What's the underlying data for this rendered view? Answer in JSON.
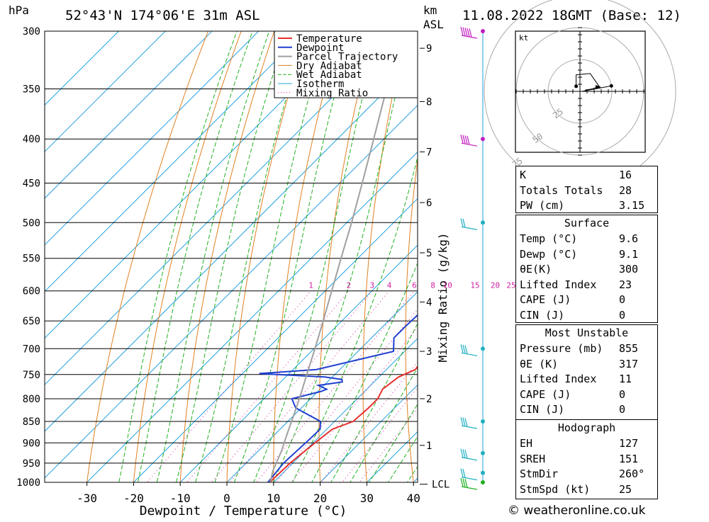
{
  "header": {
    "hpa_unit": "hPa",
    "location": "52°43'N 174°06'E 31m ASL",
    "km_unit": "km",
    "asl_unit": "ASL",
    "datetime": "11.08.2022 18GMT (Base: 12)"
  },
  "credit": "© weatheronline.co.uk",
  "colors": {
    "temperature": "#e83030",
    "dewpoint": "#2040d0",
    "parcel": "#a0a0a0",
    "dry_adiabat": "#e08020",
    "wet_adiabat": "#20b020",
    "isotherm": "#20a0e0",
    "mixing_ratio": "#d020a0"
  },
  "chart_data": {
    "type": "line",
    "title": "",
    "xlabel": "Dewpoint / Temperature (°C)",
    "ylabel": "hPa",
    "y2label": "Mixing Ratio (g/kg)",
    "xlim": [
      -40,
      40
    ],
    "ylim": [
      1000,
      300
    ],
    "y_scale": "log",
    "skew": true,
    "grid": true,
    "legend_position": "top-center",
    "pressure_ticks": [
      300,
      350,
      400,
      450,
      500,
      550,
      600,
      650,
      700,
      750,
      800,
      850,
      900,
      950,
      1000
    ],
    "temp_ticks": [
      -30,
      -20,
      -10,
      0,
      10,
      20,
      30,
      40
    ],
    "km_ticks": [
      {
        "label": "1",
        "p": 906
      },
      {
        "label": "2",
        "p": 800
      },
      {
        "label": "3",
        "p": 705
      },
      {
        "label": "4",
        "p": 618
      },
      {
        "label": "5",
        "p": 542
      },
      {
        "label": "6",
        "p": 474
      },
      {
        "label": "7",
        "p": 414
      },
      {
        "label": "8",
        "p": 362
      },
      {
        "label": "9",
        "p": 314
      }
    ],
    "lcl_label": "LCL",
    "lcl_p": 1005,
    "mixing_ratio_labels": [
      "1",
      "2",
      "3",
      "4",
      "6",
      "8",
      "10",
      "15",
      "20",
      "25"
    ],
    "mixing_ratio_values": [
      1,
      2,
      3,
      4,
      6,
      8,
      10,
      15,
      20,
      25
    ],
    "legend": [
      "Temperature",
      "Dewpoint",
      "Parcel Trajectory",
      "Dry Adiabat",
      "Wet Adiabat",
      "Isotherm",
      "Mixing Ratio"
    ],
    "series": [
      {
        "name": "Temperature",
        "points": [
          [
            1005,
            9.6
          ],
          [
            1000,
            9.2
          ],
          [
            950,
            9.4
          ],
          [
            900,
            10.4
          ],
          [
            868,
            11.2
          ],
          [
            850,
            14.0
          ],
          [
            820,
            14.4
          ],
          [
            800,
            14.4
          ],
          [
            780,
            13.4
          ],
          [
            755,
            14.2
          ],
          [
            740,
            16.2
          ],
          [
            720,
            15.6
          ],
          [
            700,
            13.4
          ],
          [
            660,
            11.8
          ],
          [
            640,
            10.6
          ],
          [
            600,
            9.8
          ],
          [
            550,
            8.0
          ],
          [
            525,
            6.8
          ],
          [
            500,
            4.8
          ],
          [
            470,
            3.0
          ],
          [
            450,
            1.8
          ],
          [
            420,
            -0.6
          ],
          [
            395,
            -2.8
          ],
          [
            380,
            -5.0
          ],
          [
            350,
            -8.8
          ],
          [
            330,
            -11.8
          ],
          [
            310,
            -13.8
          ],
          [
            300,
            -15.8
          ]
        ]
      },
      {
        "name": "Dewpoint",
        "points": [
          [
            1005,
            9.1
          ],
          [
            1000,
            8.8
          ],
          [
            950,
            8.0
          ],
          [
            900,
            8.4
          ],
          [
            868,
            8.6
          ],
          [
            850,
            7.0
          ],
          [
            820,
            -1.2
          ],
          [
            800,
            -4.0
          ],
          [
            785,
            0.6
          ],
          [
            780,
            1.4
          ],
          [
            772,
            -1.2
          ],
          [
            765,
            3.2
          ],
          [
            760,
            2.6
          ],
          [
            755,
            -1.6
          ],
          [
            748,
            -16.4
          ],
          [
            740,
            -5.0
          ],
          [
            705,
            7.6
          ],
          [
            680,
            4.8
          ],
          [
            660,
            4.8
          ],
          [
            640,
            5.0
          ],
          [
            600,
            5.4
          ],
          [
            550,
            4.8
          ],
          [
            510,
            3.2
          ],
          [
            490,
            -0.2
          ],
          [
            450,
            -9.6
          ],
          [
            430,
            -17.0
          ],
          [
            420,
            -16.6
          ],
          [
            410,
            -25.6
          ],
          [
            405,
            -9.8
          ],
          [
            398,
            -30.2
          ],
          [
            390,
            -34.4
          ],
          [
            350,
            -42.6
          ],
          [
            330,
            -52.6
          ],
          [
            310,
            -50.0
          ],
          [
            300,
            -55.4
          ]
        ]
      },
      {
        "name": "Parcel Trajectory",
        "points": [
          [
            1005,
            9.6
          ],
          [
            970,
            7.4
          ],
          [
            920,
            5.0
          ],
          [
            880,
            2.6
          ],
          [
            850,
            0.8
          ],
          [
            800,
            -2.4
          ],
          [
            750,
            -6.0
          ],
          [
            700,
            -9.8
          ],
          [
            650,
            -14.0
          ],
          [
            600,
            -18.6
          ],
          [
            550,
            -23.6
          ],
          [
            500,
            -29.0
          ],
          [
            450,
            -35.2
          ],
          [
            400,
            -42.2
          ],
          [
            350,
            -50.2
          ],
          [
            300,
            -58.6
          ]
        ]
      }
    ],
    "wind_barbs": [
      {
        "p": 300,
        "speed_kt": 50
      },
      {
        "p": 400,
        "speed_kt": 35
      },
      {
        "p": 500,
        "speed_kt": 20
      },
      {
        "p": 700,
        "speed_kt": 25
      },
      {
        "p": 850,
        "speed_kt": 25
      },
      {
        "p": 925,
        "speed_kt": 25
      },
      {
        "p": 975,
        "speed_kt": 20
      },
      {
        "p": 1000,
        "speed_kt": 25
      }
    ],
    "hodograph": {
      "unit_label": "kt",
      "ring_labels": [
        "25",
        "50",
        "75"
      ],
      "points_uv": [
        [
          -3,
          4
        ],
        [
          -3,
          13
        ],
        [
          8,
          14
        ],
        [
          15,
          4
        ],
        [
          10,
          2
        ],
        [
          4,
          1
        ]
      ],
      "storm_motion_uv": [
        24.6,
        4.3
      ]
    }
  },
  "indices": [
    {
      "label": "K",
      "value": "16"
    },
    {
      "label": "Totals Totals",
      "value": "28"
    },
    {
      "label": "PW (cm)",
      "value": "3.15"
    }
  ],
  "surface": {
    "title": "Surface",
    "rows": [
      {
        "label": "Temp (°C)",
        "value": "9.6"
      },
      {
        "label": "Dewp (°C)",
        "value": "9.1"
      },
      {
        "label": "θE(K)",
        "value": "300"
      },
      {
        "label": "Lifted Index",
        "value": "23"
      },
      {
        "label": "CAPE (J)",
        "value": "0"
      },
      {
        "label": "CIN (J)",
        "value": "0"
      }
    ]
  },
  "most_unstable": {
    "title": "Most Unstable",
    "rows": [
      {
        "label": "Pressure (mb)",
        "value": "855"
      },
      {
        "label": "θE (K)",
        "value": "317"
      },
      {
        "label": "Lifted Index",
        "value": "11"
      },
      {
        "label": "CAPE (J)",
        "value": "0"
      },
      {
        "label": "CIN (J)",
        "value": "0"
      }
    ]
  },
  "hodograph_table": {
    "title": "Hodograph",
    "rows": [
      {
        "label": "EH",
        "value": "127"
      },
      {
        "label": "SREH",
        "value": "151"
      },
      {
        "label": "StmDir",
        "value": "260°"
      },
      {
        "label": "StmSpd (kt)",
        "value": "25"
      }
    ]
  }
}
